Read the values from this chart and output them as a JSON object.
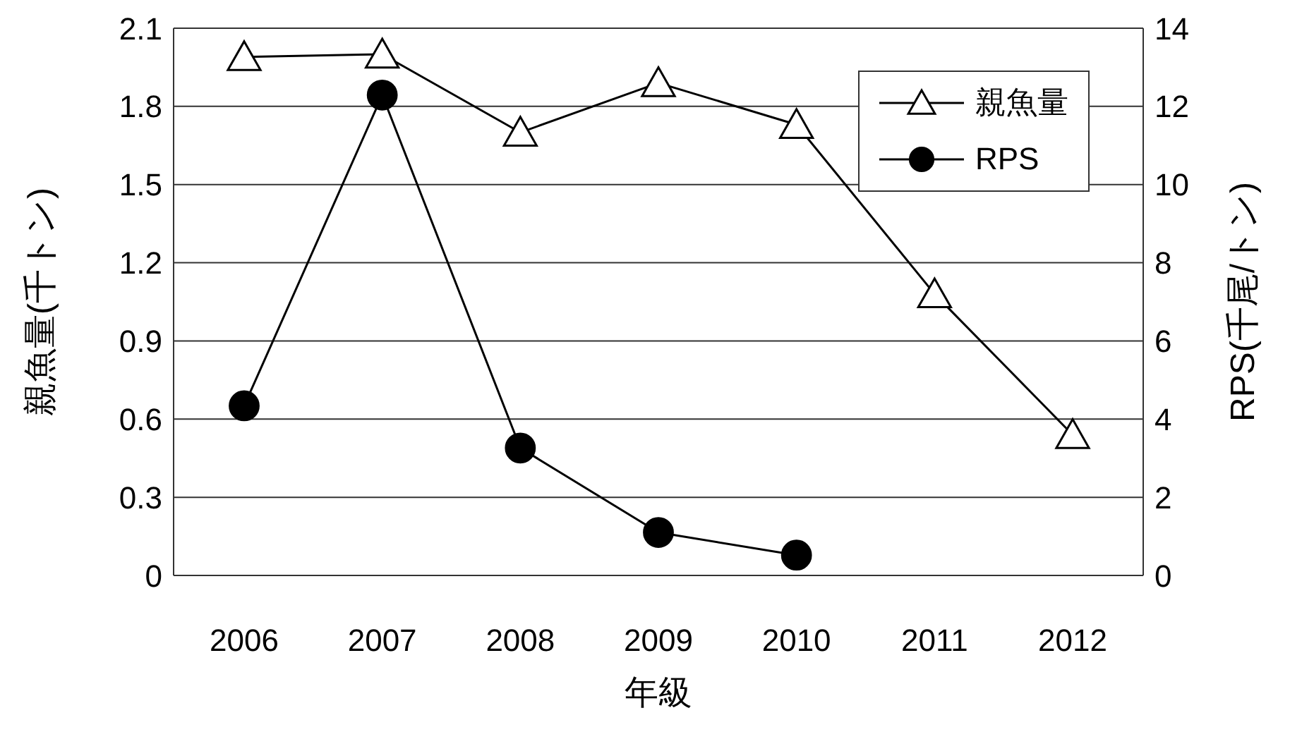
{
  "chart_data": {
    "type": "line",
    "xlabel": "年級",
    "ylabel": "親魚量(千トン)",
    "y2label": "RPS(千尾/トン)",
    "categories": [
      "2006",
      "2007",
      "2008",
      "2009",
      "2010",
      "2011",
      "2012"
    ],
    "series": [
      {
        "name": "親魚量",
        "color": "#000000",
        "marker": "triangle",
        "values": [
          1.99,
          2.0,
          1.7,
          1.89,
          1.73,
          1.08,
          0.54
        ]
      },
      {
        "name": "RPS",
        "color": "#000000",
        "marker": "circle",
        "axis": "y2",
        "values": [
          4.34,
          12.29,
          3.26,
          1.1,
          0.52,
          null,
          null
        ]
      }
    ],
    "ylim": [
      0,
      2.1
    ],
    "yticks": [
      0,
      0.3,
      0.6,
      0.9,
      1.2,
      1.5,
      1.8,
      2.1
    ],
    "y2lim": [
      0,
      14
    ],
    "y2ticks": [
      0,
      2,
      4,
      6,
      8,
      10,
      12,
      14
    ],
    "grid": "y",
    "legend": "top right",
    "line_style": "solid"
  }
}
